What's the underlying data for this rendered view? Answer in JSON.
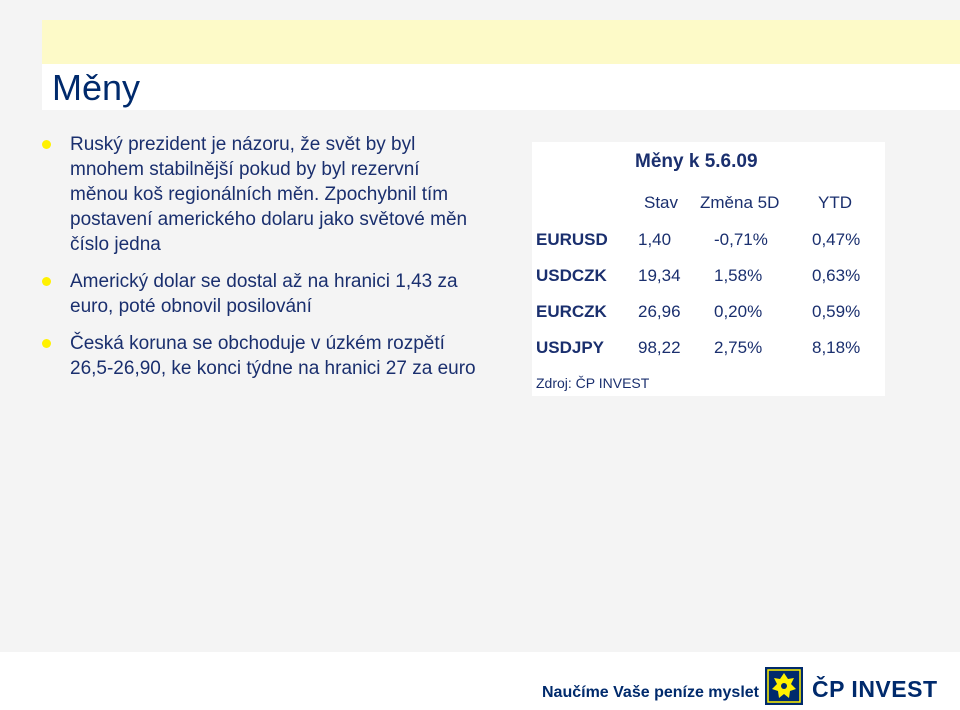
{
  "slide": {
    "title": "Měny",
    "bullets": [
      "Ruský prezident je názoru, že svět by byl mnohem stabilnější pokud by byl rezervní měnou koš regionálních měn. Zpochybnil tím postavení amerického dolaru jako světové měn číslo jedna",
      "Americký dolar se dostal až na hranici 1,43 za euro, poté obnovil posilování",
      "Česká koruna se obchoduje v úzkém rozpětí 26,5-26,90, ke konci týdne na hranici 27 za euro"
    ]
  },
  "table": {
    "title": "Měny k 5.6.09",
    "headers": {
      "stav": "Stav",
      "zmena": "Změna 5D",
      "ytd": "YTD"
    },
    "rows": [
      {
        "pair": "EURUSD",
        "stav": "1,40",
        "zmena": "-0,71%",
        "ytd": "0,47%"
      },
      {
        "pair": "USDCZK",
        "stav": "19,34",
        "zmena": "1,58%",
        "ytd": "0,63%"
      },
      {
        "pair": "EURCZK",
        "stav": "26,96",
        "zmena": "0,20%",
        "ytd": "0,59%"
      },
      {
        "pair": "USDJPY",
        "stav": "98,22",
        "zmena": "2,75%",
        "ytd": "8,18%"
      }
    ],
    "source": "Zdroj: ČP INVEST"
  },
  "footer": {
    "slogan": "Naučíme Vaše peníze myslet",
    "brand": "ČP INVEST",
    "logo_icon": "lion-crest-icon"
  },
  "colors": {
    "text": "#1a2f6e",
    "accent": "#fff100",
    "brand": "#002a6c"
  }
}
